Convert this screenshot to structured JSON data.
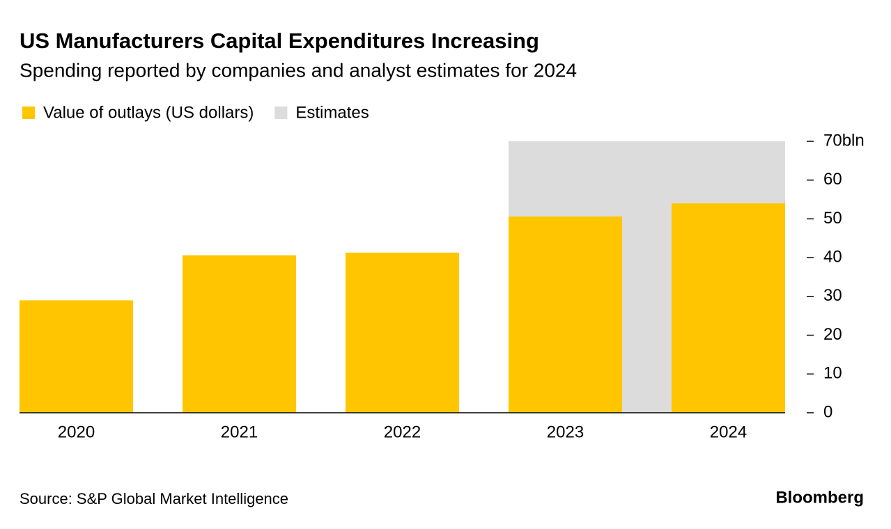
{
  "chart_data": {
    "type": "bar",
    "title": "US Manufacturers Capital Expenditures Increasing",
    "subtitle": "Spending reported by companies and analyst estimates for 2024",
    "categories": [
      "2020",
      "2021",
      "2022",
      "2023",
      "2024"
    ],
    "series": [
      {
        "name": "Value of outlays (US dollars)",
        "color": "#ffc600",
        "values": [
          29,
          40.6,
          41.3,
          50.6,
          54
        ]
      }
    ],
    "shading": {
      "name": "Estimates",
      "color": "#dcdcdc",
      "from": "2023",
      "to": "2024"
    },
    "ylim": [
      0,
      70
    ],
    "yticks": [
      0,
      10,
      20,
      30,
      40,
      50,
      60,
      {
        "value": 70,
        "label": "70bln"
      }
    ],
    "grid": false,
    "source": "Source: S&P Global Market Intelligence",
    "brand": "Bloomberg"
  }
}
